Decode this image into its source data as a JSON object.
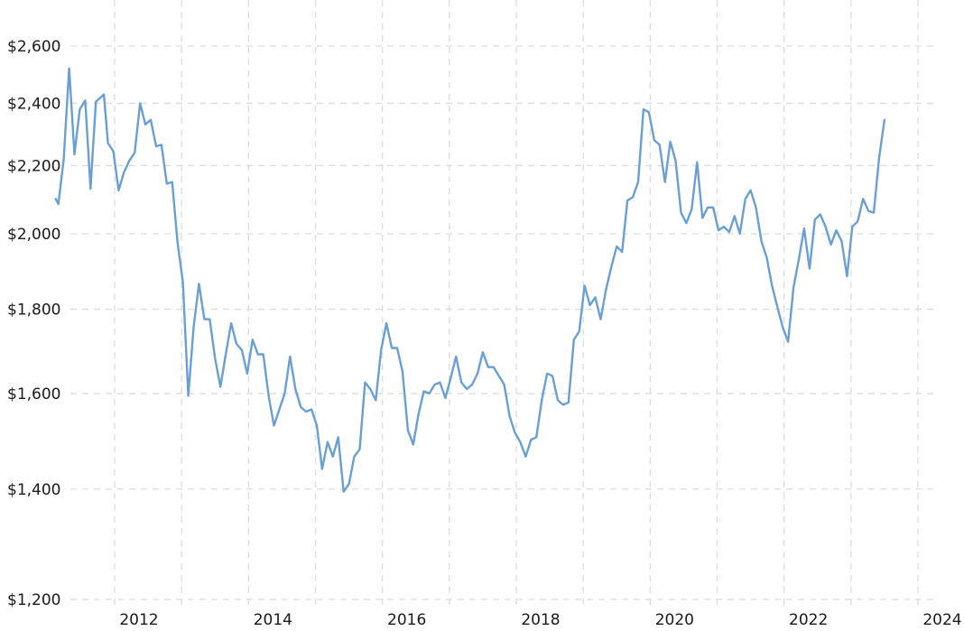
{
  "chart_data": {
    "type": "line",
    "title": "",
    "xlabel": "",
    "ylabel": "",
    "y_scale": "log",
    "ylim": [
      1200,
      2750
    ],
    "xlim": [
      2011.1,
      2024.2
    ],
    "grid": true,
    "legend": "none",
    "colors": {
      "line": "#6a9fd4",
      "grid": "#dcdcdc",
      "text": "#1a1a1a"
    },
    "y_ticks": [
      {
        "value": 1200,
        "label": "$1,200"
      },
      {
        "value": 1400,
        "label": "$1,400"
      },
      {
        "value": 1600,
        "label": "$1,600"
      },
      {
        "value": 1800,
        "label": "$1,800"
      },
      {
        "value": 2000,
        "label": "$2,000"
      },
      {
        "value": 2200,
        "label": "$2,200"
      },
      {
        "value": 2400,
        "label": "$2,400"
      },
      {
        "value": 2600,
        "label": "$2,600"
      }
    ],
    "x_ticks": [
      {
        "value": 2012,
        "label": "2012"
      },
      {
        "value": 2014,
        "label": "2014"
      },
      {
        "value": 2016,
        "label": "2016"
      },
      {
        "value": 2018,
        "label": "2018"
      },
      {
        "value": 2020,
        "label": "2020"
      },
      {
        "value": 2022,
        "label": "2022"
      },
      {
        "value": 2024,
        "label": "2024"
      }
    ],
    "series": [
      {
        "points": [
          [
            2011.12,
            2100
          ],
          [
            2011.16,
            2085
          ],
          [
            2011.24,
            2220
          ],
          [
            2011.32,
            2520
          ],
          [
            2011.4,
            2235
          ],
          [
            2011.48,
            2380
          ],
          [
            2011.56,
            2410
          ],
          [
            2011.64,
            2130
          ],
          [
            2011.72,
            2405
          ],
          [
            2011.84,
            2430
          ],
          [
            2011.9,
            2270
          ],
          [
            2011.98,
            2245
          ],
          [
            2012.06,
            2125
          ],
          [
            2012.14,
            2180
          ],
          [
            2012.22,
            2215
          ],
          [
            2012.3,
            2240
          ],
          [
            2012.38,
            2400
          ],
          [
            2012.46,
            2330
          ],
          [
            2012.54,
            2345
          ],
          [
            2012.62,
            2260
          ],
          [
            2012.7,
            2265
          ],
          [
            2012.78,
            2145
          ],
          [
            2012.86,
            2150
          ],
          [
            2012.94,
            1975
          ],
          [
            2013.02,
            1870
          ],
          [
            2013.1,
            1595
          ],
          [
            2013.18,
            1755
          ],
          [
            2013.26,
            1865
          ],
          [
            2013.34,
            1775
          ],
          [
            2013.42,
            1775
          ],
          [
            2013.5,
            1680
          ],
          [
            2013.58,
            1615
          ],
          [
            2013.66,
            1690
          ],
          [
            2013.74,
            1765
          ],
          [
            2013.82,
            1715
          ],
          [
            2013.9,
            1700
          ],
          [
            2013.98,
            1645
          ],
          [
            2014.06,
            1725
          ],
          [
            2014.14,
            1690
          ],
          [
            2014.22,
            1690
          ],
          [
            2014.3,
            1595
          ],
          [
            2014.38,
            1530
          ],
          [
            2014.46,
            1565
          ],
          [
            2014.54,
            1600
          ],
          [
            2014.62,
            1685
          ],
          [
            2014.7,
            1610
          ],
          [
            2014.78,
            1570
          ],
          [
            2014.86,
            1560
          ],
          [
            2014.94,
            1565
          ],
          [
            2015.02,
            1530
          ],
          [
            2015.1,
            1440
          ],
          [
            2015.18,
            1495
          ],
          [
            2015.26,
            1465
          ],
          [
            2015.34,
            1505
          ],
          [
            2015.42,
            1395
          ],
          [
            2015.5,
            1410
          ],
          [
            2015.58,
            1465
          ],
          [
            2015.66,
            1480
          ],
          [
            2015.74,
            1625
          ],
          [
            2015.82,
            1610
          ],
          [
            2015.9,
            1585
          ],
          [
            2015.98,
            1700
          ],
          [
            2016.06,
            1765
          ],
          [
            2016.14,
            1705
          ],
          [
            2016.22,
            1705
          ],
          [
            2016.3,
            1650
          ],
          [
            2016.38,
            1520
          ],
          [
            2016.46,
            1490
          ],
          [
            2016.54,
            1555
          ],
          [
            2016.62,
            1605
          ],
          [
            2016.7,
            1600
          ],
          [
            2016.78,
            1620
          ],
          [
            2016.86,
            1625
          ],
          [
            2016.94,
            1590
          ],
          [
            2017.02,
            1635
          ],
          [
            2017.1,
            1685
          ],
          [
            2017.18,
            1625
          ],
          [
            2017.26,
            1610
          ],
          [
            2017.34,
            1620
          ],
          [
            2017.42,
            1645
          ],
          [
            2017.5,
            1695
          ],
          [
            2017.58,
            1660
          ],
          [
            2017.66,
            1660
          ],
          [
            2017.74,
            1640
          ],
          [
            2017.82,
            1620
          ],
          [
            2017.9,
            1550
          ],
          [
            2017.98,
            1515
          ],
          [
            2018.06,
            1495
          ],
          [
            2018.14,
            1465
          ],
          [
            2018.22,
            1500
          ],
          [
            2018.3,
            1505
          ],
          [
            2018.38,
            1585
          ],
          [
            2018.46,
            1645
          ],
          [
            2018.54,
            1640
          ],
          [
            2018.62,
            1585
          ],
          [
            2018.7,
            1575
          ],
          [
            2018.78,
            1580
          ],
          [
            2018.86,
            1725
          ],
          [
            2018.94,
            1745
          ],
          [
            2019.02,
            1860
          ],
          [
            2019.1,
            1810
          ],
          [
            2019.18,
            1830
          ],
          [
            2019.26,
            1775
          ],
          [
            2019.34,
            1850
          ],
          [
            2019.42,
            1910
          ],
          [
            2019.5,
            1965
          ],
          [
            2019.58,
            1950
          ],
          [
            2019.66,
            2095
          ],
          [
            2019.74,
            2105
          ],
          [
            2019.82,
            2150
          ],
          [
            2019.9,
            2380
          ],
          [
            2019.98,
            2370
          ],
          [
            2020.06,
            2280
          ],
          [
            2020.14,
            2265
          ],
          [
            2020.22,
            2150
          ],
          [
            2020.3,
            2275
          ],
          [
            2020.38,
            2215
          ],
          [
            2020.46,
            2060
          ],
          [
            2020.54,
            2030
          ],
          [
            2020.62,
            2070
          ],
          [
            2020.7,
            2210
          ],
          [
            2020.78,
            2045
          ],
          [
            2020.86,
            2075
          ],
          [
            2020.94,
            2075
          ],
          [
            2021.02,
            2010
          ],
          [
            2021.1,
            2020
          ],
          [
            2021.18,
            2005
          ],
          [
            2021.26,
            2050
          ],
          [
            2021.34,
            2000
          ],
          [
            2021.42,
            2100
          ],
          [
            2021.5,
            2125
          ],
          [
            2021.58,
            2075
          ],
          [
            2021.66,
            1980
          ],
          [
            2021.74,
            1935
          ],
          [
            2021.82,
            1860
          ],
          [
            2021.9,
            1805
          ],
          [
            2021.98,
            1755
          ],
          [
            2022.06,
            1720
          ],
          [
            2022.14,
            1855
          ],
          [
            2022.22,
            1930
          ],
          [
            2022.3,
            2015
          ],
          [
            2022.38,
            1905
          ],
          [
            2022.46,
            2040
          ],
          [
            2022.54,
            2055
          ],
          [
            2022.62,
            2020
          ],
          [
            2022.7,
            1970
          ],
          [
            2022.78,
            2010
          ],
          [
            2022.86,
            1980
          ],
          [
            2022.94,
            1885
          ],
          [
            2023.02,
            2020
          ],
          [
            2023.1,
            2035
          ],
          [
            2023.18,
            2100
          ],
          [
            2023.26,
            2065
          ],
          [
            2023.34,
            2060
          ],
          [
            2023.42,
            2225
          ],
          [
            2023.5,
            2345
          ]
        ]
      }
    ]
  }
}
